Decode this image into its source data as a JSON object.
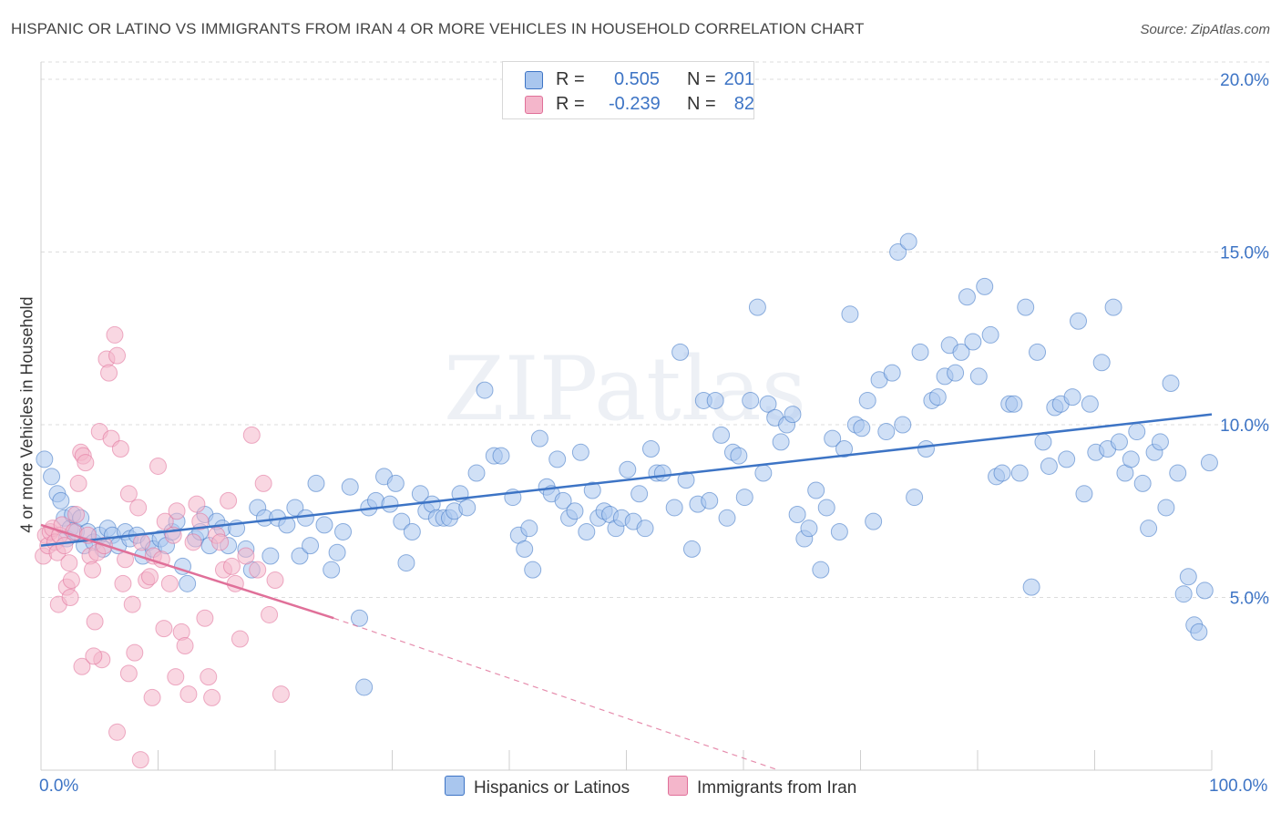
{
  "title": "HISPANIC OR LATINO VS IMMIGRANTS FROM IRAN 4 OR MORE VEHICLES IN HOUSEHOLD CORRELATION CHART",
  "source": "Source: ZipAtlas.com",
  "legend_stats": [
    {
      "r_label": "R =",
      "r_value": "0.505",
      "n_label": "N =",
      "n_value": "201"
    },
    {
      "r_label": "R =",
      "r_value": "-0.239",
      "n_label": "N =",
      "n_value": "82"
    }
  ],
  "watermark": "ZIPatlas",
  "colors": {
    "blue": "#3d74c5",
    "blue_fill": "#a9c6ee",
    "pink": "#e07099",
    "pink_fill": "#f4b6cb"
  },
  "chart_data": {
    "type": "scatter",
    "title": "HISPANIC OR LATINO VS IMMIGRANTS FROM IRAN 4 OR MORE VEHICLES IN HOUSEHOLD CORRELATION CHART",
    "xlabel": "",
    "ylabel": "4 or more Vehicles in Household",
    "xlim": [
      0,
      100
    ],
    "ylim": [
      0,
      20.5
    ],
    "x_tick_labels": [
      "0.0%",
      "100.0%"
    ],
    "y_ticks": [
      5,
      10,
      15,
      20
    ],
    "y_tick_labels": [
      "5.0%",
      "10.0%",
      "15.0%",
      "20.0%"
    ],
    "grid": true,
    "legend_position": "bottom",
    "series": [
      {
        "name": "Hispanics or Latinos",
        "color": "#3d74c5",
        "trend": {
          "x": [
            0,
            100
          ],
          "y": [
            6.5,
            10.3
          ]
        },
        "points": [
          [
            0.3,
            9
          ],
          [
            0.9,
            8.5
          ],
          [
            1.4,
            8
          ],
          [
            1.7,
            7.8
          ],
          [
            2.0,
            7.3
          ],
          [
            2.2,
            6.7
          ],
          [
            2.5,
            7.0
          ],
          [
            2.7,
            7.4
          ],
          [
            3.0,
            6.9
          ],
          [
            3.4,
            7.3
          ],
          [
            3.7,
            6.5
          ],
          [
            4.0,
            6.9
          ],
          [
            4.5,
            6.6
          ],
          [
            5.0,
            6.8
          ],
          [
            5.3,
            6.4
          ],
          [
            5.7,
            7.0
          ],
          [
            6.1,
            6.8
          ],
          [
            6.6,
            6.5
          ],
          [
            7.2,
            6.9
          ],
          [
            7.6,
            6.7
          ],
          [
            8.2,
            6.8
          ],
          [
            8.7,
            6.2
          ],
          [
            9.2,
            6.6
          ],
          [
            9.6,
            6.4
          ],
          [
            10.2,
            6.7
          ],
          [
            10.7,
            6.5
          ],
          [
            11.2,
            6.9
          ],
          [
            11.6,
            7.2
          ],
          [
            12.1,
            5.9
          ],
          [
            12.5,
            5.4
          ],
          [
            13.2,
            6.7
          ],
          [
            13.6,
            6.9
          ],
          [
            14.0,
            7.4
          ],
          [
            14.4,
            6.5
          ],
          [
            15.0,
            7.2
          ],
          [
            15.5,
            7.0
          ],
          [
            16.0,
            6.5
          ],
          [
            16.7,
            7.0
          ],
          [
            17.5,
            6.4
          ],
          [
            18.0,
            5.8
          ],
          [
            18.5,
            7.6
          ],
          [
            19.1,
            7.3
          ],
          [
            19.6,
            6.2
          ],
          [
            20.2,
            7.3
          ],
          [
            21.0,
            7.1
          ],
          [
            21.7,
            7.6
          ],
          [
            22.1,
            6.2
          ],
          [
            22.6,
            7.3
          ],
          [
            23.0,
            6.5
          ],
          [
            23.5,
            8.3
          ],
          [
            24.2,
            7.1
          ],
          [
            24.8,
            5.8
          ],
          [
            25.3,
            6.3
          ],
          [
            25.8,
            6.9
          ],
          [
            26.4,
            8.2
          ],
          [
            27.2,
            4.4
          ],
          [
            27.6,
            2.4
          ],
          [
            28.0,
            7.6
          ],
          [
            28.6,
            7.8
          ],
          [
            29.3,
            8.5
          ],
          [
            29.8,
            7.7
          ],
          [
            30.3,
            8.3
          ],
          [
            30.8,
            7.2
          ],
          [
            31.2,
            6.0
          ],
          [
            31.7,
            6.9
          ],
          [
            32.4,
            8.0
          ],
          [
            32.9,
            7.5
          ],
          [
            33.4,
            7.7
          ],
          [
            33.8,
            7.3
          ],
          [
            34.4,
            7.3
          ],
          [
            34.9,
            7.3
          ],
          [
            35.3,
            7.5
          ],
          [
            35.8,
            8.0
          ],
          [
            36.4,
            7.6
          ],
          [
            37.2,
            8.6
          ],
          [
            37.9,
            11.0
          ],
          [
            38.7,
            9.1
          ],
          [
            39.3,
            9.1
          ],
          [
            40.3,
            7.9
          ],
          [
            40.8,
            6.8
          ],
          [
            41.3,
            6.4
          ],
          [
            41.7,
            7.0
          ],
          [
            42.0,
            5.8
          ],
          [
            42.6,
            9.6
          ],
          [
            43.2,
            8.2
          ],
          [
            43.6,
            8.0
          ],
          [
            44.1,
            9.0
          ],
          [
            44.6,
            7.8
          ],
          [
            45.1,
            7.3
          ],
          [
            45.6,
            7.5
          ],
          [
            46.1,
            9.2
          ],
          [
            46.6,
            6.9
          ],
          [
            47.1,
            8.1
          ],
          [
            47.6,
            7.3
          ],
          [
            48.1,
            7.5
          ],
          [
            48.6,
            7.4
          ],
          [
            49.1,
            7.0
          ],
          [
            49.6,
            7.3
          ],
          [
            50.1,
            8.7
          ],
          [
            50.6,
            7.2
          ],
          [
            51.1,
            8.0
          ],
          [
            51.6,
            7.0
          ],
          [
            52.1,
            9.3
          ],
          [
            52.6,
            8.6
          ],
          [
            53.1,
            8.6
          ],
          [
            54.1,
            7.6
          ],
          [
            54.6,
            12.1
          ],
          [
            55.1,
            8.4
          ],
          [
            55.6,
            6.4
          ],
          [
            56.1,
            7.7
          ],
          [
            56.6,
            10.7
          ],
          [
            57.1,
            7.8
          ],
          [
            57.6,
            10.7
          ],
          [
            58.1,
            9.7
          ],
          [
            58.6,
            7.3
          ],
          [
            59.1,
            9.2
          ],
          [
            59.6,
            9.1
          ],
          [
            60.1,
            7.9
          ],
          [
            60.6,
            10.7
          ],
          [
            61.2,
            13.4
          ],
          [
            61.7,
            8.6
          ],
          [
            62.1,
            10.6
          ],
          [
            62.7,
            10.2
          ],
          [
            63.2,
            9.5
          ],
          [
            63.7,
            10.0
          ],
          [
            64.2,
            10.3
          ],
          [
            64.6,
            7.4
          ],
          [
            65.2,
            6.7
          ],
          [
            65.6,
            7.0
          ],
          [
            66.2,
            8.1
          ],
          [
            66.6,
            5.8
          ],
          [
            67.1,
            7.6
          ],
          [
            67.6,
            9.6
          ],
          [
            68.2,
            6.9
          ],
          [
            68.6,
            9.3
          ],
          [
            69.1,
            13.2
          ],
          [
            69.6,
            10.0
          ],
          [
            70.1,
            9.9
          ],
          [
            70.6,
            10.7
          ],
          [
            71.1,
            7.2
          ],
          [
            71.6,
            11.3
          ],
          [
            72.2,
            9.8
          ],
          [
            72.7,
            11.5
          ],
          [
            73.2,
            15.0
          ],
          [
            73.6,
            10.0
          ],
          [
            74.1,
            15.3
          ],
          [
            74.6,
            7.9
          ],
          [
            75.1,
            12.1
          ],
          [
            75.6,
            9.3
          ],
          [
            76.1,
            10.7
          ],
          [
            76.6,
            10.8
          ],
          [
            77.2,
            11.4
          ],
          [
            77.6,
            12.3
          ],
          [
            78.1,
            11.5
          ],
          [
            78.6,
            12.1
          ],
          [
            79.1,
            13.7
          ],
          [
            79.6,
            12.4
          ],
          [
            80.1,
            11.4
          ],
          [
            80.6,
            14.0
          ],
          [
            81.1,
            12.6
          ],
          [
            81.6,
            8.5
          ],
          [
            82.1,
            8.6
          ],
          [
            82.7,
            10.6
          ],
          [
            83.1,
            10.6
          ],
          [
            83.6,
            8.6
          ],
          [
            84.1,
            13.4
          ],
          [
            84.6,
            5.3
          ],
          [
            85.1,
            12.1
          ],
          [
            85.6,
            9.5
          ],
          [
            86.1,
            8.8
          ],
          [
            86.6,
            10.5
          ],
          [
            87.1,
            10.6
          ],
          [
            87.6,
            9.0
          ],
          [
            88.1,
            10.8
          ],
          [
            88.6,
            13.0
          ],
          [
            89.1,
            8.0
          ],
          [
            89.6,
            10.6
          ],
          [
            90.1,
            9.2
          ],
          [
            90.6,
            11.8
          ],
          [
            91.1,
            9.3
          ],
          [
            91.6,
            13.4
          ],
          [
            92.1,
            9.5
          ],
          [
            92.6,
            8.6
          ],
          [
            93.1,
            9.0
          ],
          [
            93.6,
            9.8
          ],
          [
            94.1,
            8.3
          ],
          [
            94.6,
            7.0
          ],
          [
            95.1,
            9.2
          ],
          [
            95.6,
            9.5
          ],
          [
            96.1,
            7.6
          ],
          [
            96.5,
            11.2
          ],
          [
            97.1,
            8.6
          ],
          [
            97.6,
            5.1
          ],
          [
            98.0,
            5.6
          ],
          [
            98.5,
            4.2
          ],
          [
            98.9,
            4.0
          ],
          [
            99.4,
            5.2
          ],
          [
            99.8,
            8.9
          ]
        ]
      },
      {
        "name": "Immigrants from Iran",
        "color": "#e07099",
        "trend": {
          "x": [
            0,
            25
          ],
          "y": [
            7.1,
            4.4
          ]
        },
        "trend_dashed": {
          "x": [
            25,
            63
          ],
          "y": [
            4.4,
            0
          ]
        },
        "points": [
          [
            0.2,
            6.2
          ],
          [
            0.4,
            6.8
          ],
          [
            0.6,
            6.5
          ],
          [
            0.8,
            6.9
          ],
          [
            1.0,
            7.0
          ],
          [
            1.2,
            6.6
          ],
          [
            1.4,
            6.3
          ],
          [
            1.6,
            6.8
          ],
          [
            1.8,
            7.1
          ],
          [
            2.0,
            6.5
          ],
          [
            2.2,
            5.3
          ],
          [
            2.4,
            6.0
          ],
          [
            2.6,
            5.5
          ],
          [
            2.8,
            6.9
          ],
          [
            3.0,
            7.4
          ],
          [
            3.2,
            8.3
          ],
          [
            3.4,
            9.2
          ],
          [
            3.6,
            9.1
          ],
          [
            3.8,
            8.9
          ],
          [
            4.0,
            6.8
          ],
          [
            4.2,
            6.2
          ],
          [
            4.4,
            5.8
          ],
          [
            4.6,
            4.3
          ],
          [
            4.8,
            6.3
          ],
          [
            5.0,
            9.8
          ],
          [
            5.2,
            3.2
          ],
          [
            5.4,
            6.5
          ],
          [
            5.6,
            11.9
          ],
          [
            5.8,
            11.5
          ],
          [
            6.0,
            9.6
          ],
          [
            6.3,
            12.6
          ],
          [
            6.5,
            12.0
          ],
          [
            6.8,
            9.3
          ],
          [
            7.0,
            5.4
          ],
          [
            7.2,
            6.1
          ],
          [
            7.5,
            8.0
          ],
          [
            7.8,
            4.8
          ],
          [
            8.0,
            3.4
          ],
          [
            8.3,
            7.6
          ],
          [
            8.6,
            6.6
          ],
          [
            9.0,
            5.5
          ],
          [
            9.3,
            5.6
          ],
          [
            9.6,
            6.2
          ],
          [
            10.0,
            8.8
          ],
          [
            10.3,
            6.1
          ],
          [
            10.6,
            7.2
          ],
          [
            11.0,
            5.4
          ],
          [
            11.3,
            6.8
          ],
          [
            11.6,
            7.5
          ],
          [
            12.0,
            4.0
          ],
          [
            12.3,
            3.6
          ],
          [
            12.6,
            2.2
          ],
          [
            13.0,
            6.6
          ],
          [
            13.3,
            7.7
          ],
          [
            13.6,
            7.2
          ],
          [
            14.0,
            4.4
          ],
          [
            14.3,
            2.7
          ],
          [
            14.6,
            2.1
          ],
          [
            15.0,
            6.8
          ],
          [
            15.3,
            6.6
          ],
          [
            15.6,
            5.8
          ],
          [
            16.0,
            7.8
          ],
          [
            16.3,
            5.9
          ],
          [
            16.6,
            5.4
          ],
          [
            17.0,
            3.8
          ],
          [
            17.5,
            6.2
          ],
          [
            18.0,
            9.7
          ],
          [
            18.5,
            5.8
          ],
          [
            19.0,
            8.3
          ],
          [
            19.5,
            4.5
          ],
          [
            20.0,
            5.5
          ],
          [
            20.5,
            2.2
          ],
          [
            1.5,
            4.8
          ],
          [
            2.5,
            5.0
          ],
          [
            3.5,
            3.0
          ],
          [
            4.5,
            3.3
          ],
          [
            6.5,
            1.1
          ],
          [
            7.5,
            2.8
          ],
          [
            8.5,
            0.3
          ],
          [
            9.5,
            2.1
          ],
          [
            10.5,
            4.1
          ],
          [
            11.5,
            2.7
          ]
        ]
      }
    ]
  }
}
